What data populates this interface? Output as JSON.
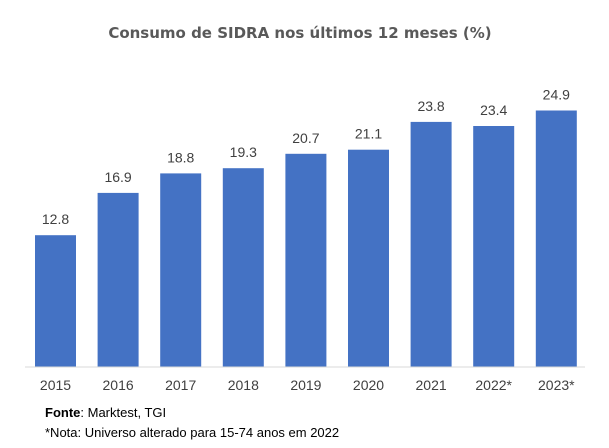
{
  "chart_data": {
    "type": "bar",
    "title": "Consumo de SIDRA nos últimos 12 meses (%)",
    "categories": [
      "2015",
      "2016",
      "2017",
      "2018",
      "2019",
      "2020",
      "2021",
      "2022*",
      "2023*"
    ],
    "values": [
      12.8,
      16.9,
      18.8,
      19.3,
      20.7,
      21.1,
      23.8,
      23.4,
      24.9
    ],
    "value_labels": [
      "12.8",
      "16.9",
      "18.8",
      "19.3",
      "20.7",
      "21.1",
      "23.8",
      "23.4",
      "24.9"
    ],
    "xlabel": "",
    "ylabel": "",
    "ylim": [
      0,
      25
    ],
    "grid": false,
    "legend": "none",
    "bar_color": "#4472c4"
  },
  "footer": {
    "source_label": "Fonte",
    "source_text": ": Marktest, TGI",
    "note_text": "*Nota: Universo alterado para 15-74 anos em 2022"
  }
}
